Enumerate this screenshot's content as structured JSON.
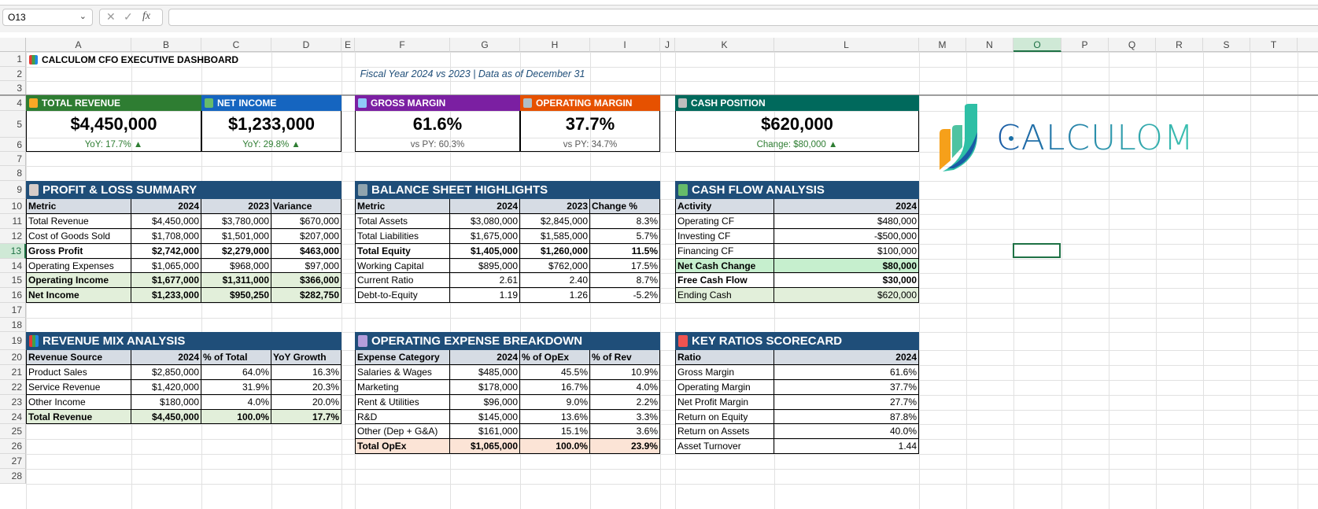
{
  "name_box": "O13",
  "formula_bar": {
    "cancel_icon": "✕",
    "enter_icon": "✓",
    "fx_label": "fx",
    "value": ""
  },
  "column_headers": [
    "A",
    "B",
    "C",
    "D",
    "E",
    "F",
    "G",
    "H",
    "I",
    "J",
    "K",
    "L",
    "M",
    "N",
    "O",
    "P",
    "Q",
    "R",
    "S",
    "T",
    "U"
  ],
  "row_headers": [
    "1",
    "2",
    "3",
    "4",
    "5",
    "6",
    "7",
    "8",
    "9",
    "10",
    "11",
    "12",
    "13",
    "14",
    "15",
    "16",
    "17",
    "18",
    "19",
    "20",
    "21",
    "22",
    "23",
    "24",
    "25",
    "26",
    "27",
    "28"
  ],
  "selected_cell": "O13",
  "title": "CALCULOM CFO EXECUTIVE DASHBOARD",
  "title_icon": "bar-chart-icon",
  "subtitle": "Fiscal Year 2024 vs 2023 | Data as of December 31",
  "colors": {
    "section_header": "#1f4e79",
    "table_header": "#d6dce4",
    "highlight_green": "#e2efda",
    "highlight_strong_green": "#c6efce",
    "highlight_peach": "#fce4d6",
    "positive": "#2e7d32",
    "neutral": "#595959"
  },
  "kpis": [
    {
      "label": "TOTAL REVENUE",
      "icon": "money-bag-icon",
      "value": "$4,450,000",
      "sub": "YoY: 17.7% ▲",
      "color": "#2e7d32",
      "sub_tone": "positive"
    },
    {
      "label": "NET INCOME",
      "icon": "banknote-icon",
      "value": "$1,233,000",
      "sub": "YoY: 29.8% ▲",
      "color": "#1565c0",
      "sub_tone": "positive"
    },
    {
      "label": "GROSS MARGIN",
      "icon": "chart-increasing-icon",
      "value": "61.6%",
      "sub": "vs PY: 60.3%",
      "color": "#7b1fa2",
      "sub_tone": "neutral"
    },
    {
      "label": "OPERATING MARGIN",
      "icon": "gear-icon",
      "value": "37.7%",
      "sub": "vs PY: 34.7%",
      "color": "#e65100",
      "sub_tone": "neutral"
    },
    {
      "label": "CASH POSITION",
      "icon": "bank-icon",
      "value": "$620,000",
      "sub": "Change: $80,000 ▲",
      "color": "#00695c",
      "sub_tone": "positive"
    }
  ],
  "logo": {
    "text": "CALCULOM"
  },
  "tables": [
    {
      "id": "pnl",
      "title": "PROFIT & LOSS SUMMARY",
      "icon": "clipboard-icon",
      "headers": [
        "Metric",
        "2024",
        "2023",
        "Variance"
      ],
      "rows": [
        {
          "cells": [
            "Total Revenue",
            "$4,450,000",
            "$3,780,000",
            "$670,000"
          ]
        },
        {
          "cells": [
            "Cost of Goods Sold",
            "$1,708,000",
            "$1,501,000",
            "$207,000"
          ]
        },
        {
          "cells": [
            "Gross Profit",
            "$2,742,000",
            "$2,279,000",
            "$463,000"
          ],
          "bold": true
        },
        {
          "cells": [
            "Operating Expenses",
            "$1,065,000",
            "$968,000",
            "$97,000"
          ]
        },
        {
          "cells": [
            "Operating Income",
            "$1,677,000",
            "$1,311,000",
            "$366,000"
          ],
          "bold": true,
          "fill": "#e2efda"
        },
        {
          "cells": [
            "Net Income",
            "$1,233,000",
            "$950,250",
            "$282,750"
          ],
          "bold": true,
          "fill": "#e2efda"
        }
      ]
    },
    {
      "id": "balance",
      "title": "BALANCE SHEET HIGHLIGHTS",
      "icon": "office-building-icon",
      "headers": [
        "Metric",
        "2024",
        "2023",
        "Change %"
      ],
      "rows": [
        {
          "cells": [
            "Total Assets",
            "$3,080,000",
            "$2,845,000",
            "8.3%"
          ]
        },
        {
          "cells": [
            "Total Liabilities",
            "$1,675,000",
            "$1,585,000",
            "5.7%"
          ]
        },
        {
          "cells": [
            "Total Equity",
            "$1,405,000",
            "$1,260,000",
            "11.5%"
          ],
          "bold": true
        },
        {
          "cells": [
            "Working Capital",
            "$895,000",
            "$762,000",
            "17.5%"
          ]
        },
        {
          "cells": [
            "Current Ratio",
            "2.61",
            "2.40",
            "8.7%"
          ]
        },
        {
          "cells": [
            "Debt-to-Equity",
            "1.19",
            "1.26",
            "-5.2%"
          ]
        }
      ]
    },
    {
      "id": "cashflow",
      "title": "CASH FLOW ANALYSIS",
      "icon": "money-with-wings-icon",
      "headers": [
        "Activity",
        "2024"
      ],
      "rows": [
        {
          "cells": [
            "Operating CF",
            "$480,000"
          ]
        },
        {
          "cells": [
            "Investing CF",
            "-$500,000"
          ]
        },
        {
          "cells": [
            "Financing CF",
            "$100,000"
          ]
        },
        {
          "cells": [
            "Net Cash Change",
            "$80,000"
          ],
          "bold": true,
          "fill": "#c6efce"
        },
        {
          "cells": [
            "Free Cash Flow",
            "$30,000"
          ],
          "bold": true
        },
        {
          "cells": [
            "Ending Cash",
            "$620,000"
          ],
          "fill": "#e2efda"
        }
      ]
    },
    {
      "id": "revmix",
      "title": "REVENUE MIX ANALYSIS",
      "icon": "bar-chart-icon",
      "headers": [
        "Revenue Source",
        "2024",
        "% of Total",
        "YoY Growth"
      ],
      "rows": [
        {
          "cells": [
            "Product Sales",
            "$2,850,000",
            "64.0%",
            "16.3%"
          ]
        },
        {
          "cells": [
            "Service Revenue",
            "$1,420,000",
            "31.9%",
            "20.3%"
          ]
        },
        {
          "cells": [
            "Other Income",
            "$180,000",
            "4.0%",
            "20.0%"
          ]
        },
        {
          "cells": [
            "Total Revenue",
            "$4,450,000",
            "100.0%",
            "17.7%"
          ],
          "bold": true,
          "fill": "#e2efda"
        }
      ]
    },
    {
      "id": "opex",
      "title": "OPERATING EXPENSE BREAKDOWN",
      "icon": "gear-icon",
      "headers": [
        "Expense Category",
        "2024",
        "% of OpEx",
        "% of Rev"
      ],
      "rows": [
        {
          "cells": [
            "Salaries & Wages",
            "$485,000",
            "45.5%",
            "10.9%"
          ]
        },
        {
          "cells": [
            "Marketing",
            "$178,000",
            "16.7%",
            "4.0%"
          ]
        },
        {
          "cells": [
            "Rent & Utilities",
            "$96,000",
            "9.0%",
            "2.2%"
          ]
        },
        {
          "cells": [
            "R&D",
            "$145,000",
            "13.6%",
            "3.3%"
          ]
        },
        {
          "cells": [
            "Other (Dep + G&A)",
            "$161,000",
            "15.1%",
            "3.6%"
          ]
        },
        {
          "cells": [
            "Total OpEx",
            "$1,065,000",
            "100.0%",
            "23.9%"
          ],
          "bold": true,
          "fill": "#fce4d6"
        }
      ]
    },
    {
      "id": "ratios",
      "title": "KEY RATIOS SCORECARD",
      "icon": "target-icon",
      "headers": [
        "Ratio",
        "2024"
      ],
      "rows": [
        {
          "cells": [
            "Gross Margin",
            "61.6%"
          ]
        },
        {
          "cells": [
            "Operating Margin",
            "37.7%"
          ]
        },
        {
          "cells": [
            "Net Profit Margin",
            "27.7%"
          ]
        },
        {
          "cells": [
            "Return on Equity",
            "87.8%"
          ]
        },
        {
          "cells": [
            "Return on Assets",
            "40.0%"
          ]
        },
        {
          "cells": [
            "Asset Turnover",
            "1.44"
          ]
        }
      ]
    }
  ]
}
